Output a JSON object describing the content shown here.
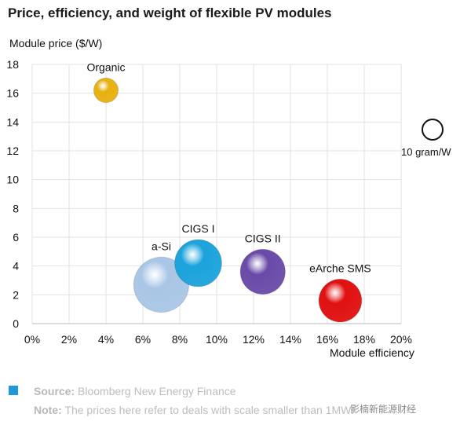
{
  "title": "Price, efficiency, and weight of flexible PV modules",
  "chart_data": {
    "type": "scatter",
    "title": "Price, efficiency, and weight of flexible PV modules",
    "xlabel": "Module efficiency",
    "ylabel": "Module price ($/W)",
    "xlim": [
      0,
      20
    ],
    "ylim": [
      0,
      18
    ],
    "x_ticks": [
      "0%",
      "2%",
      "4%",
      "6%",
      "8%",
      "10%",
      "12%",
      "14%",
      "16%",
      "18%",
      "20%"
    ],
    "y_ticks": [
      "0",
      "2",
      "4",
      "6",
      "8",
      "10",
      "12",
      "14",
      "16",
      "18"
    ],
    "grid": true,
    "points": [
      {
        "label": "Organic",
        "x": 4.0,
        "y": 16.2,
        "weight_scale": 0.6,
        "color": "#e8b010"
      },
      {
        "label": "a-Si",
        "x": 7.0,
        "y": 2.7,
        "weight_scale": 1.35,
        "color": "#a9c6e6"
      },
      {
        "label": "CIGS I",
        "x": 9.0,
        "y": 4.2,
        "weight_scale": 1.15,
        "color": "#1ba3db"
      },
      {
        "label": "CIGS II",
        "x": 12.5,
        "y": 3.6,
        "weight_scale": 1.1,
        "color": "#6a4aa8"
      },
      {
        "label": "eArche SMS",
        "x": 16.7,
        "y": 1.6,
        "weight_scale": 1.05,
        "color": "#e01010"
      }
    ],
    "size_legend": {
      "label": "10 gram/W",
      "weight_scale": 1.0
    }
  },
  "source": {
    "prefix": "Source:",
    "text": "Bloomberg New Energy Finance",
    "color": "#1b9ad6"
  },
  "note": {
    "prefix": "Note:",
    "text": "The prices here refer to deals with scale smaller than 1MW."
  },
  "watermark": "影楠新能源财经"
}
